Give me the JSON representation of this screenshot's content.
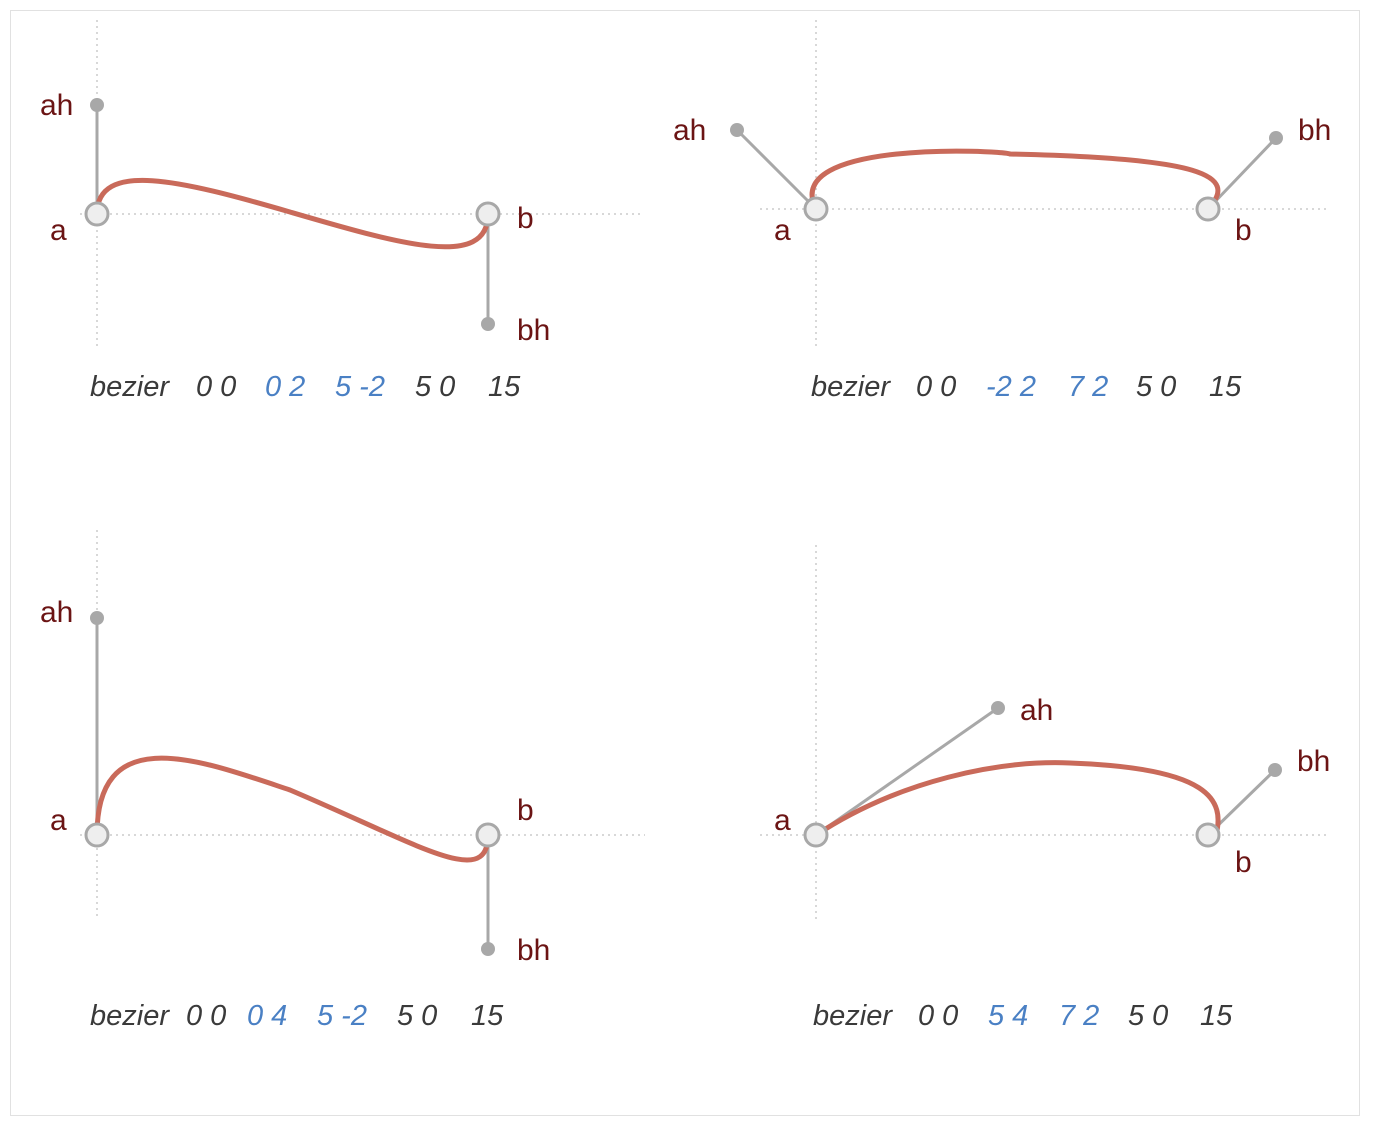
{
  "panels": [
    {
      "labels": {
        "a": "a",
        "b": "b",
        "ah": "ah",
        "bh": "bh"
      },
      "command": {
        "word": "bezier",
        "p0": "0 0",
        "h1": "0 2",
        "h2": "5 -2",
        "p1": "5 0",
        "w": "15"
      }
    },
    {
      "labels": {
        "a": "a",
        "b": "b",
        "ah": "ah",
        "bh": "bh"
      },
      "command": {
        "word": "bezier",
        "p0": "0 0",
        "h1": "-2 2",
        "h2": "7 2",
        "p1": "5 0",
        "w": "15"
      }
    },
    {
      "labels": {
        "a": "a",
        "b": "b",
        "ah": "ah",
        "bh": "bh"
      },
      "command": {
        "word": "bezier",
        "p0": "0 0",
        "h1": "0 4",
        "h2": "5 -2",
        "p1": "5 0",
        "w": "15"
      }
    },
    {
      "labels": {
        "a": "a",
        "b": "b",
        "ah": "ah",
        "bh": "bh"
      },
      "command": {
        "word": "bezier",
        "p0": "0 0",
        "h1": "5 4",
        "h2": "7 2",
        "p1": "5 0",
        "w": "15"
      }
    }
  ]
}
